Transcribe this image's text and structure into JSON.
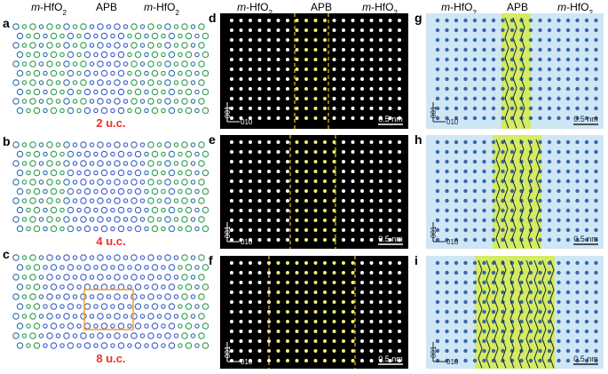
{
  "columns": [
    {
      "headers": [
        {
          "italic": "m",
          "text": "-HfO",
          "sub": "2"
        },
        {
          "text": "APB"
        },
        {
          "italic": "m",
          "text": "-HfO",
          "sub": "2"
        }
      ]
    },
    {
      "headers": [
        {
          "italic": "m",
          "text": "-HfO",
          "sub": "2"
        },
        {
          "text": "APB"
        },
        {
          "italic": "m",
          "text": "-HfO",
          "sub": "2"
        }
      ]
    },
    {
      "headers": [
        {
          "italic": "m",
          "text": "-HfO",
          "sub": "2"
        },
        {
          "text": "APB"
        },
        {
          "italic": "m",
          "text": "-HfO",
          "sub": "2"
        }
      ]
    }
  ],
  "panels": [
    {
      "label": "a",
      "caption": "2 u.c."
    },
    {
      "label": "b",
      "caption": "4 u.c."
    },
    {
      "label": "c",
      "caption": "8 u.c."
    },
    {
      "label": "d",
      "axis_vertical": "001",
      "axis_horizontal": "010",
      "scale_bar": "0.5 nm"
    },
    {
      "label": "e",
      "axis_vertical": "001",
      "axis_horizontal": "010",
      "scale_bar": "0.5 nm"
    },
    {
      "label": "f",
      "axis_vertical": "001",
      "axis_horizontal": "010",
      "scale_bar": "0.5 nm"
    },
    {
      "label": "g",
      "axis_vertical": "001",
      "axis_horizontal": "010",
      "scale_bar": "0.5 nm"
    },
    {
      "label": "h",
      "axis_vertical": "001",
      "axis_horizontal": "010",
      "scale_bar": "0.5 nm"
    },
    {
      "label": "i",
      "axis_vertical": "001",
      "axis_horizontal": "010",
      "scale_bar": "0.5 nm"
    }
  ]
}
